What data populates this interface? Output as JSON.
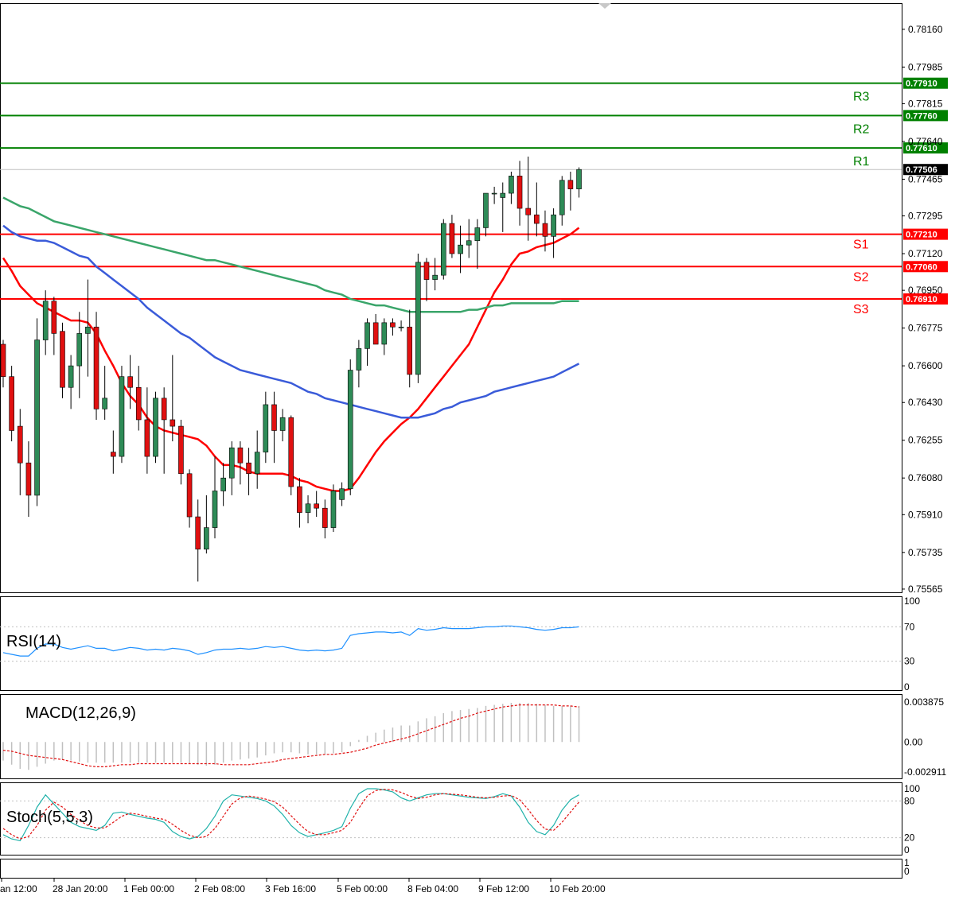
{
  "chart_data": {
    "type": "candlestick",
    "price_axis": {
      "ylim": [
        0.7555,
        0.7827
      ],
      "ticks": [
        "0.78160",
        "0.77985",
        "0.77815",
        "0.77640",
        "0.77465",
        "0.77295",
        "0.77120",
        "0.76950",
        "0.76775",
        "0.76600",
        "0.76430",
        "0.76255",
        "0.76080",
        "0.75910",
        "0.75735",
        "0.75565"
      ],
      "current_price": "0.77506"
    },
    "time_axis": {
      "labels": [
        "an 12:00",
        "28 Jan 20:00",
        "1 Feb 00:00",
        "2 Feb 08:00",
        "3 Feb 16:00",
        "5 Feb 00:00",
        "8 Feb 04:00",
        "9 Feb 12:00",
        "10 Feb 20:00"
      ]
    },
    "levels": [
      {
        "name": "R3",
        "value": 0.7791,
        "label": "0.77910",
        "color": "#008000"
      },
      {
        "name": "R2",
        "value": 0.7776,
        "label": "0.77760",
        "color": "#008000"
      },
      {
        "name": "R1",
        "value": 0.7761,
        "label": "0.77610",
        "color": "#008000"
      },
      {
        "name": "S1",
        "value": 0.7721,
        "label": "0.77210",
        "color": "#ff0000"
      },
      {
        "name": "S2",
        "value": 0.7706,
        "label": "0.77060",
        "color": "#ff0000"
      },
      {
        "name": "S3",
        "value": 0.7691,
        "label": "0.76910",
        "color": "#ff0000"
      }
    ],
    "candles": [
      [
        0.767,
        0.7672,
        0.765,
        0.7655
      ],
      [
        0.7655,
        0.766,
        0.7625,
        0.763
      ],
      [
        0.7632,
        0.764,
        0.76,
        0.7615
      ],
      [
        0.7615,
        0.7625,
        0.759,
        0.76
      ],
      [
        0.76,
        0.7682,
        0.7595,
        0.7672
      ],
      [
        0.7672,
        0.7695,
        0.7665,
        0.769
      ],
      [
        0.769,
        0.7692,
        0.7665,
        0.7675
      ],
      [
        0.7676,
        0.768,
        0.7645,
        0.765
      ],
      [
        0.765,
        0.7665,
        0.764,
        0.766
      ],
      [
        0.766,
        0.7685,
        0.7645,
        0.7675
      ],
      [
        0.7675,
        0.77,
        0.7655,
        0.7678
      ],
      [
        0.7678,
        0.7685,
        0.7635,
        0.764
      ],
      [
        0.764,
        0.766,
        0.7635,
        0.7645
      ],
      [
        0.762,
        0.763,
        0.761,
        0.7618
      ],
      [
        0.7618,
        0.766,
        0.7615,
        0.7655
      ],
      [
        0.7655,
        0.7665,
        0.764,
        0.765
      ],
      [
        0.765,
        0.766,
        0.763,
        0.7635
      ],
      [
        0.7635,
        0.765,
        0.761,
        0.7618
      ],
      [
        0.7618,
        0.7648,
        0.7615,
        0.7645
      ],
      [
        0.7645,
        0.765,
        0.761,
        0.7635
      ],
      [
        0.7635,
        0.7665,
        0.7625,
        0.7632
      ],
      [
        0.7632,
        0.7635,
        0.7605,
        0.761
      ],
      [
        0.761,
        0.7612,
        0.7585,
        0.759
      ],
      [
        0.759,
        0.7598,
        0.756,
        0.7575
      ],
      [
        0.7575,
        0.76,
        0.7573,
        0.7585
      ],
      [
        0.7585,
        0.7618,
        0.758,
        0.7602
      ],
      [
        0.7602,
        0.7615,
        0.7595,
        0.7608
      ],
      [
        0.7608,
        0.7625,
        0.76,
        0.7622
      ],
      [
        0.7622,
        0.7625,
        0.7605,
        0.7615
      ],
      [
        0.7615,
        0.7622,
        0.76,
        0.761
      ],
      [
        0.761,
        0.763,
        0.7603,
        0.762
      ],
      [
        0.762,
        0.7648,
        0.7615,
        0.7642
      ],
      [
        0.7642,
        0.7648,
        0.7615,
        0.763
      ],
      [
        0.763,
        0.764,
        0.7625,
        0.7636
      ],
      [
        0.7636,
        0.7637,
        0.76,
        0.7604
      ],
      [
        0.7604,
        0.7608,
        0.7585,
        0.7592
      ],
      [
        0.7592,
        0.76,
        0.7587,
        0.7596
      ],
      [
        0.7596,
        0.7602,
        0.759,
        0.7594
      ],
      [
        0.7594,
        0.7598,
        0.758,
        0.7585
      ],
      [
        0.7585,
        0.7605,
        0.7583,
        0.7602
      ],
      [
        0.7598,
        0.7606,
        0.7595,
        0.7603
      ],
      [
        0.7603,
        0.7663,
        0.76,
        0.7658
      ],
      [
        0.7658,
        0.7672,
        0.765,
        0.7668
      ],
      [
        0.7668,
        0.7682,
        0.766,
        0.768
      ],
      [
        0.768,
        0.7684,
        0.767,
        0.767
      ],
      [
        0.767,
        0.7682,
        0.7665,
        0.768
      ],
      [
        0.768,
        0.7682,
        0.7674,
        0.7678
      ],
      [
        0.7678,
        0.7681,
        0.7676,
        0.7678
      ],
      [
        0.7678,
        0.7686,
        0.765,
        0.7656
      ],
      [
        0.7656,
        0.7712,
        0.7652,
        0.7708
      ],
      [
        0.7708,
        0.771,
        0.769,
        0.77
      ],
      [
        0.77,
        0.771,
        0.7695,
        0.7702
      ],
      [
        0.7702,
        0.7728,
        0.77,
        0.7726
      ],
      [
        0.7726,
        0.773,
        0.771,
        0.7712
      ],
      [
        0.7712,
        0.7725,
        0.7703,
        0.7716
      ],
      [
        0.7716,
        0.7728,
        0.771,
        0.7718
      ],
      [
        0.7718,
        0.7728,
        0.7705,
        0.7724
      ],
      [
        0.7724,
        0.774,
        0.772,
        0.774
      ],
      [
        0.774,
        0.7743,
        0.7735,
        0.774
      ],
      [
        0.7738,
        0.7745,
        0.7722,
        0.774
      ],
      [
        0.774,
        0.775,
        0.7735,
        0.7748
      ],
      [
        0.7748,
        0.7755,
        0.7725,
        0.7733
      ],
      [
        0.7733,
        0.7757,
        0.7718,
        0.773
      ],
      [
        0.773,
        0.7745,
        0.772,
        0.7726
      ],
      [
        0.7726,
        0.7732,
        0.7713,
        0.772
      ],
      [
        0.772,
        0.7733,
        0.771,
        0.773
      ],
      [
        0.773,
        0.7748,
        0.7725,
        0.7746
      ],
      [
        0.7746,
        0.775,
        0.7732,
        0.7742
      ],
      [
        0.7742,
        0.7752,
        0.7738,
        0.7751
      ]
    ],
    "moving_averages": [
      {
        "color": "#ff0000",
        "values": [
          0.771,
          0.7704,
          0.7697,
          0.7693,
          0.7689,
          0.7687,
          0.7685,
          0.7683,
          0.7681,
          0.7681,
          0.768,
          0.7675,
          0.7667,
          0.766,
          0.7652,
          0.7646,
          0.7642,
          0.7636,
          0.7632,
          0.763,
          0.7629,
          0.7628,
          0.7627,
          0.7626,
          0.7623,
          0.7618,
          0.7614,
          0.7614,
          0.7613,
          0.7611,
          0.761,
          0.761,
          0.761,
          0.761,
          0.7609,
          0.7607,
          0.7606,
          0.7604,
          0.7603,
          0.7602,
          0.7602,
          0.7603,
          0.7608,
          0.7614,
          0.762,
          0.7625,
          0.7629,
          0.7633,
          0.7636,
          0.764,
          0.7645,
          0.765,
          0.7655,
          0.766,
          0.7665,
          0.767,
          0.7678,
          0.7686,
          0.7694,
          0.77,
          0.7707,
          0.7712,
          0.7713,
          0.7715,
          0.7716,
          0.7717,
          0.7719,
          0.7721,
          0.7724
        ]
      },
      {
        "color": "#3a5bd9",
        "values": [
          0.7725,
          0.7722,
          0.772,
          0.7719,
          0.7718,
          0.7718,
          0.7717,
          0.7715,
          0.7713,
          0.7711,
          0.771,
          0.7706,
          0.7703,
          0.77,
          0.7697,
          0.7694,
          0.7691,
          0.7687,
          0.7684,
          0.7681,
          0.7678,
          0.7675,
          0.7673,
          0.767,
          0.7667,
          0.7664,
          0.7662,
          0.766,
          0.7658,
          0.7657,
          0.7656,
          0.7655,
          0.7654,
          0.7653,
          0.7652,
          0.765,
          0.7648,
          0.7647,
          0.7645,
          0.7644,
          0.7643,
          0.7642,
          0.7641,
          0.764,
          0.7639,
          0.7638,
          0.7637,
          0.7636,
          0.7636,
          0.7636,
          0.7637,
          0.7638,
          0.764,
          0.7641,
          0.7643,
          0.7644,
          0.7645,
          0.7646,
          0.7648,
          0.7649,
          0.765,
          0.7651,
          0.7652,
          0.7653,
          0.7654,
          0.7655,
          0.7657,
          0.7659,
          0.7661
        ]
      },
      {
        "color": "#3aa56a",
        "values": [
          0.7738,
          0.7736,
          0.7734,
          0.7733,
          0.7731,
          0.7729,
          0.7727,
          0.7726,
          0.7725,
          0.7724,
          0.7723,
          0.7722,
          0.7721,
          0.772,
          0.7719,
          0.7718,
          0.7717,
          0.7716,
          0.7715,
          0.7714,
          0.7713,
          0.7712,
          0.7711,
          0.771,
          0.7709,
          0.7709,
          0.7708,
          0.7707,
          0.7706,
          0.7705,
          0.7704,
          0.7703,
          0.7702,
          0.7701,
          0.77,
          0.7699,
          0.7698,
          0.7697,
          0.7695,
          0.7694,
          0.7693,
          0.7691,
          0.769,
          0.7689,
          0.7688,
          0.7688,
          0.7687,
          0.7686,
          0.7685,
          0.7685,
          0.7685,
          0.7685,
          0.7685,
          0.7685,
          0.7685,
          0.7686,
          0.7686,
          0.7687,
          0.7688,
          0.7688,
          0.7689,
          0.7689,
          0.7689,
          0.7689,
          0.7689,
          0.7689,
          0.769,
          0.769,
          0.769
        ]
      }
    ],
    "rsi": {
      "label": "RSI(14)",
      "ticks": [
        "100",
        "70",
        "30",
        "0"
      ],
      "values": [
        40,
        38,
        36,
        36,
        45,
        50,
        50,
        46,
        44,
        46,
        48,
        45,
        45,
        42,
        44,
        46,
        45,
        43,
        44,
        43,
        45,
        44,
        42,
        38,
        40,
        43,
        44,
        44,
        45,
        44,
        45,
        47,
        46,
        47,
        45,
        43,
        42,
        43,
        42,
        43,
        45,
        60,
        62,
        63,
        64,
        64,
        63,
        64,
        60,
        68,
        66,
        67,
        69,
        68,
        68,
        68,
        69,
        70,
        70,
        71,
        71,
        70,
        69,
        67,
        66,
        67,
        69,
        69,
        70
      ]
    },
    "macd": {
      "label": "MACD(12,26,9)",
      "ticks": [
        "0.003875",
        "0.00",
        "-0.002911"
      ],
      "histogram": [
        -0.0018,
        -0.0022,
        -0.0026,
        -0.0027,
        -0.0024,
        -0.0021,
        -0.0018,
        -0.0017,
        -0.0018,
        -0.0019,
        -0.002,
        -0.002,
        -0.002,
        -0.002,
        -0.002,
        -0.002,
        -0.002,
        -0.002,
        -0.002,
        -0.002,
        -0.002,
        -0.002,
        -0.0021,
        -0.0022,
        -0.0023,
        -0.0022,
        -0.002,
        -0.0018,
        -0.0017,
        -0.0016,
        -0.0015,
        -0.0013,
        -0.0011,
        -0.001,
        -0.001,
        -0.0011,
        -0.0012,
        -0.0012,
        -0.0012,
        -0.0011,
        -0.001,
        -0.0004,
        0.0002,
        0.0006,
        0.0009,
        0.0012,
        0.0014,
        0.0016,
        0.0016,
        0.002,
        0.0023,
        0.0025,
        0.0028,
        0.003,
        0.0031,
        0.0032,
        0.0033,
        0.0035,
        0.0036,
        0.0037,
        0.0038,
        0.0038,
        0.0038,
        0.0037,
        0.0036,
        0.0035,
        0.0035,
        0.0035,
        0.0035
      ],
      "signal": [
        -0.0008,
        -0.0009,
        -0.0011,
        -0.0013,
        -0.0014,
        -0.0015,
        -0.0016,
        -0.0017,
        -0.0019,
        -0.0021,
        -0.0023,
        -0.0024,
        -0.0024,
        -0.0023,
        -0.0022,
        -0.0022,
        -0.0021,
        -0.0021,
        -0.0021,
        -0.0021,
        -0.0021,
        -0.0021,
        -0.0021,
        -0.0021,
        -0.0021,
        -0.0021,
        -0.0022,
        -0.0022,
        -0.0022,
        -0.0022,
        -0.0021,
        -0.002,
        -0.0019,
        -0.0017,
        -0.0016,
        -0.0015,
        -0.0014,
        -0.0013,
        -0.0012,
        -0.0012,
        -0.0011,
        -0.001,
        -0.0008,
        -0.0006,
        -0.0003,
        -0.0001,
        0.0001,
        0.0003,
        0.0005,
        0.0008,
        0.0011,
        0.0014,
        0.0017,
        0.002,
        0.0023,
        0.0025,
        0.0028,
        0.003,
        0.0032,
        0.0034,
        0.0035,
        0.0036,
        0.0036,
        0.0036,
        0.0036,
        0.0036,
        0.0035,
        0.0035,
        0.0034
      ]
    },
    "stochastic": {
      "label": "Stoch(5,5,3)",
      "ticks": [
        "100",
        "80",
        "20",
        "0"
      ],
      "main": [
        25,
        18,
        15,
        40,
        70,
        90,
        75,
        60,
        45,
        38,
        35,
        32,
        40,
        60,
        62,
        58,
        55,
        52,
        50,
        45,
        30,
        22,
        18,
        22,
        35,
        55,
        80,
        90,
        88,
        86,
        84,
        80,
        72,
        58,
        40,
        28,
        22,
        25,
        28,
        32,
        38,
        68,
        92,
        100,
        100,
        98,
        95,
        85,
        80,
        85,
        90,
        92,
        92,
        90,
        88,
        86,
        85,
        84,
        87,
        92,
        88,
        70,
        45,
        30,
        25,
        40,
        65,
        82,
        90
      ],
      "signal": [
        35,
        25,
        18,
        22,
        40,
        65,
        78,
        70,
        58,
        48,
        40,
        36,
        36,
        45,
        55,
        60,
        58,
        55,
        52,
        50,
        42,
        32,
        24,
        20,
        22,
        35,
        55,
        75,
        85,
        88,
        86,
        83,
        79,
        70,
        56,
        42,
        30,
        25,
        25,
        28,
        32,
        45,
        68,
        88,
        97,
        99,
        98,
        94,
        88,
        84,
        86,
        90,
        92,
        91,
        90,
        88,
        86,
        85,
        86,
        88,
        89,
        82,
        66,
        48,
        34,
        32,
        45,
        62,
        78
      ]
    }
  }
}
